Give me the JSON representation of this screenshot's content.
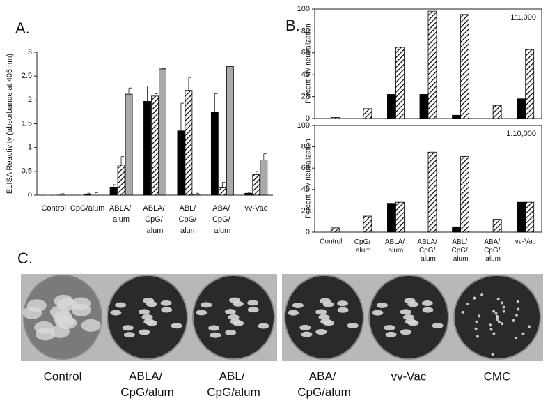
{
  "chart_data": [
    {
      "type": "bar",
      "panel_label": "A.",
      "y_label": "ELISA Reactivity (absorbance at 405 nm)",
      "categories": [
        "Control",
        "CpG/alum",
        "ABLA/ alum",
        "ABLA/ CpG/ alum",
        "ABL/ CpG/ alum",
        "ABA/ CpG/ alum",
        "vv-Vac"
      ],
      "series": [
        {
          "color": "#000000",
          "values": [
            0,
            0,
            0.17,
            1.97,
            1.35,
            1.75,
            0.04
          ],
          "errors": [
            0,
            0,
            0.05,
            0.32,
            0.58,
            0.38,
            0.02
          ]
        },
        {
          "color": "#ffffff",
          "hatched": true,
          "values": [
            0,
            0.01,
            0.63,
            2.08,
            2.2,
            0.17,
            0.43
          ],
          "errors": [
            0,
            0.03,
            0.18,
            0.05,
            0.27,
            0.1,
            0.07
          ]
        },
        {
          "color": "#aaaaaa",
          "values": [
            0.02,
            0,
            2.12,
            2.65,
            0.02,
            2.7,
            0.74
          ],
          "errors": [
            0.01,
            0.05,
            0.13,
            0.01,
            0.02,
            0.01,
            0.13
          ]
        }
      ],
      "ylim": [
        0,
        3
      ],
      "yticks": [
        0,
        0.5,
        1,
        1.5,
        2,
        2.5,
        3
      ]
    },
    {
      "type": "bar",
      "panel_label": "B.",
      "annotation": "1:1,000",
      "y_label": "Percent MV neutralization",
      "categories": [
        null,
        null,
        null,
        null,
        null,
        null,
        null
      ],
      "series": [
        {
          "color": "#000000",
          "values": [
            0,
            0,
            22,
            22,
            3,
            0,
            18
          ]
        },
        {
          "color": "#ffffff",
          "hatched": true,
          "values": [
            1,
            9,
            65,
            98,
            95,
            12,
            63
          ]
        }
      ],
      "ylim": [
        0,
        100
      ],
      "yticks": [
        0,
        20,
        40,
        60,
        80,
        100
      ]
    },
    {
      "type": "bar",
      "annotation": "1:10,000",
      "y_label": "Percent MV neutralization",
      "categories": [
        "Control",
        "CpG/ alum",
        "ABLA/ alum",
        "ABLA/ CpG/ alum",
        "ABL/ CpG/ alum",
        "ABA/ CpG/ alum",
        "vv-Vac"
      ],
      "series": [
        {
          "color": "#000000",
          "values": [
            0,
            0,
            27,
            0,
            5,
            0,
            28
          ]
        },
        {
          "color": "#ffffff",
          "hatched": true,
          "values": [
            4,
            15,
            28,
            75,
            71,
            12,
            28
          ]
        }
      ],
      "ylim": [
        0,
        100
      ],
      "yticks": [
        0,
        20,
        40,
        60,
        80,
        100
      ]
    }
  ],
  "panel_c": {
    "panel_label": "C.",
    "images": [
      "Control",
      "ABLA/ CpG/alum",
      "ABL/ CpG/alum",
      "ABA/ CpG/alum",
      "vv-Vac",
      "CMC"
    ]
  }
}
